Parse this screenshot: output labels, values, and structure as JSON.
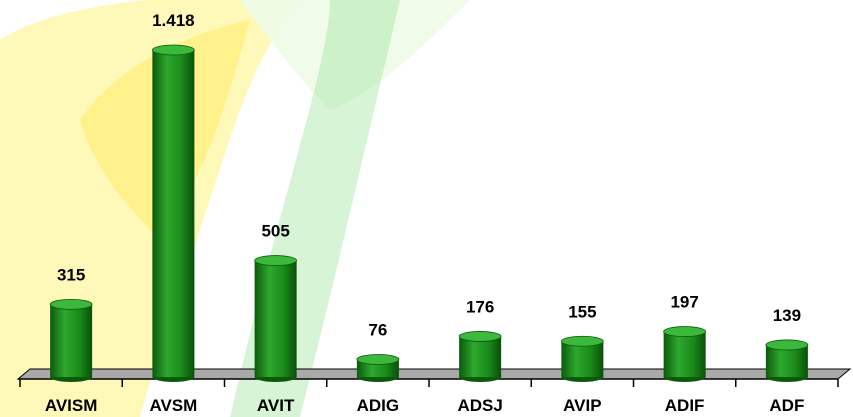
{
  "chart_data": {
    "type": "bar",
    "categories": [
      "AVISM",
      "AVSM",
      "AVIT",
      "ADIG",
      "ADSJ",
      "AVIP",
      "ADIF",
      "ADF"
    ],
    "values": [
      315,
      1418,
      505,
      76,
      176,
      155,
      197,
      139
    ],
    "value_labels": [
      "315",
      "1.418",
      "505",
      "76",
      "176",
      "155",
      "197",
      "139"
    ],
    "color": "#1f8a1f"
  }
}
